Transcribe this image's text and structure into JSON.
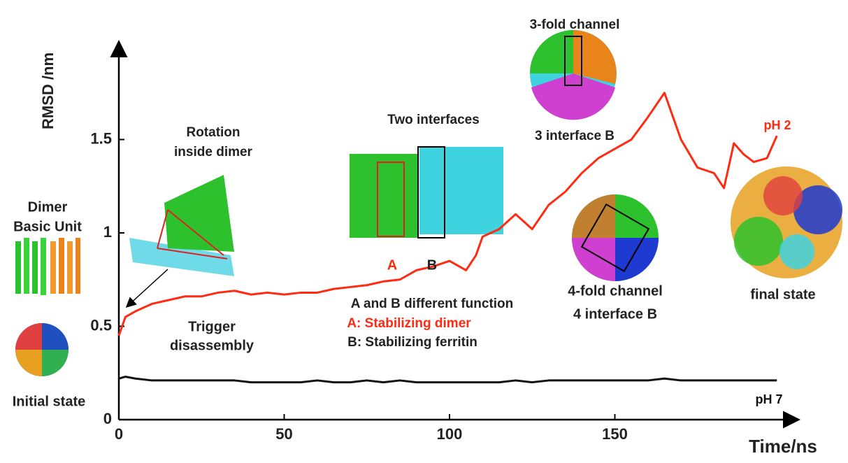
{
  "chart_data": {
    "type": "line",
    "y_label": "RMSD /nm",
    "x_label": "Time/ns",
    "x": [
      0,
      2,
      5,
      10,
      15,
      20,
      25,
      30,
      35,
      40,
      45,
      50,
      55,
      60,
      65,
      70,
      75,
      80,
      85,
      90,
      95,
      100,
      105,
      108,
      110,
      115,
      120,
      125,
      130,
      135,
      140,
      145,
      150,
      155,
      160,
      165,
      170,
      175,
      180,
      183,
      186,
      189,
      192,
      196,
      199
    ],
    "series": [
      {
        "name": "pH 2",
        "color": "#ff2a12",
        "values": [
          0.45,
          0.55,
          0.58,
          0.62,
          0.64,
          0.66,
          0.66,
          0.68,
          0.69,
          0.67,
          0.68,
          0.67,
          0.68,
          0.68,
          0.7,
          0.71,
          0.72,
          0.74,
          0.75,
          0.8,
          0.82,
          0.85,
          0.8,
          0.88,
          0.98,
          1.02,
          1.1,
          1.02,
          1.15,
          1.22,
          1.32,
          1.4,
          1.45,
          1.5,
          1.62,
          1.75,
          1.5,
          1.35,
          1.32,
          1.24,
          1.48,
          1.42,
          1.38,
          1.4,
          1.52
        ]
      },
      {
        "name": "pH 7",
        "color": "#111111",
        "values": [
          0.22,
          0.23,
          0.22,
          0.21,
          0.21,
          0.21,
          0.21,
          0.21,
          0.21,
          0.2,
          0.2,
          0.2,
          0.2,
          0.21,
          0.2,
          0.2,
          0.21,
          0.2,
          0.21,
          0.2,
          0.2,
          0.2,
          0.2,
          0.2,
          0.2,
          0.2,
          0.21,
          0.2,
          0.21,
          0.21,
          0.21,
          0.21,
          0.21,
          0.21,
          0.21,
          0.22,
          0.21,
          0.21,
          0.21,
          0.21,
          0.21,
          0.21,
          0.21,
          0.21,
          0.21
        ]
      }
    ],
    "xlim": [
      0,
      205
    ],
    "ylim": [
      0,
      2.0
    ],
    "xticks": [
      0,
      50,
      100,
      150
    ],
    "yticks": [
      0,
      0.5,
      1,
      1.5
    ],
    "grid": false,
    "annotations": [
      {
        "text": "Dimer",
        "color": "#222222"
      },
      {
        "text": "Basic Unit",
        "color": "#222222"
      },
      {
        "text": "Initial state",
        "color": "#222222"
      },
      {
        "text": "Rotation",
        "color": "#222222"
      },
      {
        "text": "inside dimer",
        "color": "#222222"
      },
      {
        "text": "Trigger",
        "color": "#222222"
      },
      {
        "text": "disassembly",
        "color": "#222222"
      },
      {
        "text": "Two interfaces",
        "color": "#222222"
      },
      {
        "text": "A",
        "color": "#ff2a12"
      },
      {
        "text": "B",
        "color": "#222222"
      },
      {
        "text": "A and B different function",
        "color": "#222222"
      },
      {
        "text": "A: Stabilizing dimer",
        "color": "#ff2a12"
      },
      {
        "text": "B: Stabilizing ferritin",
        "color": "#222222"
      },
      {
        "text": "3-fold channel",
        "color": "#222222"
      },
      {
        "text": "3 interface B",
        "color": "#222222"
      },
      {
        "text": "4-fold channel",
        "color": "#222222"
      },
      {
        "text": "4 interface B",
        "color": "#222222"
      },
      {
        "text": "final state",
        "color": "#222222"
      }
    ]
  }
}
